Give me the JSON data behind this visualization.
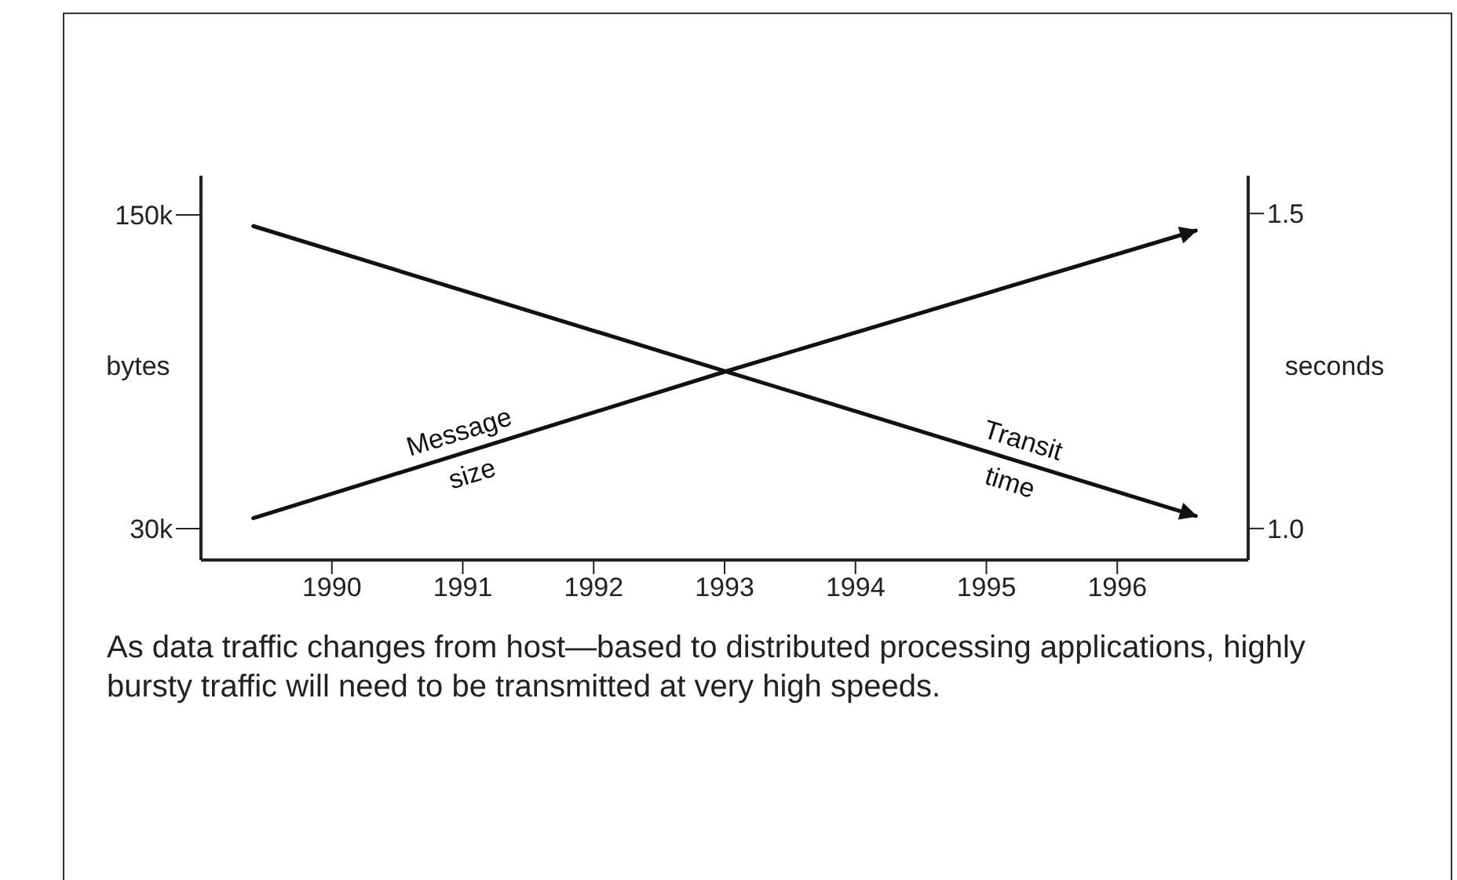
{
  "chart_data": {
    "type": "line",
    "x": [
      1989.4,
      1993,
      1996.6
    ],
    "xlim": [
      1989,
      1997
    ],
    "xticks": [
      1990,
      1991,
      1992,
      1993,
      1994,
      1995,
      1996
    ],
    "ylabel": "bytes",
    "y2label": "seconds",
    "ylim": [
      18000,
      165000
    ],
    "yticks": [
      {
        "value": 30000,
        "label": "30k"
      },
      {
        "value": 150000,
        "label": "150k"
      }
    ],
    "y2lim": [
      0.95,
      1.56
    ],
    "y2ticks": [
      {
        "value": 1,
        "label": "1.0"
      },
      {
        "value": 1.5,
        "label": "1.5"
      }
    ],
    "series": [
      {
        "name": "Message size",
        "color": "#111111",
        "values": [
          34000,
          90000,
          144000
        ]
      },
      {
        "name": "Transit time",
        "color": "#111111",
        "values": [
          1.48,
          1.25,
          1.02
        ],
        "axis": "y2"
      }
    ],
    "marker": "none",
    "line_style": "solid",
    "grid": false,
    "legend": false,
    "annotations": [
      "As data traffic changes from host—based to distributed processing applications, highly bursty traffic will need to be transmitted at very high speeds."
    ]
  }
}
